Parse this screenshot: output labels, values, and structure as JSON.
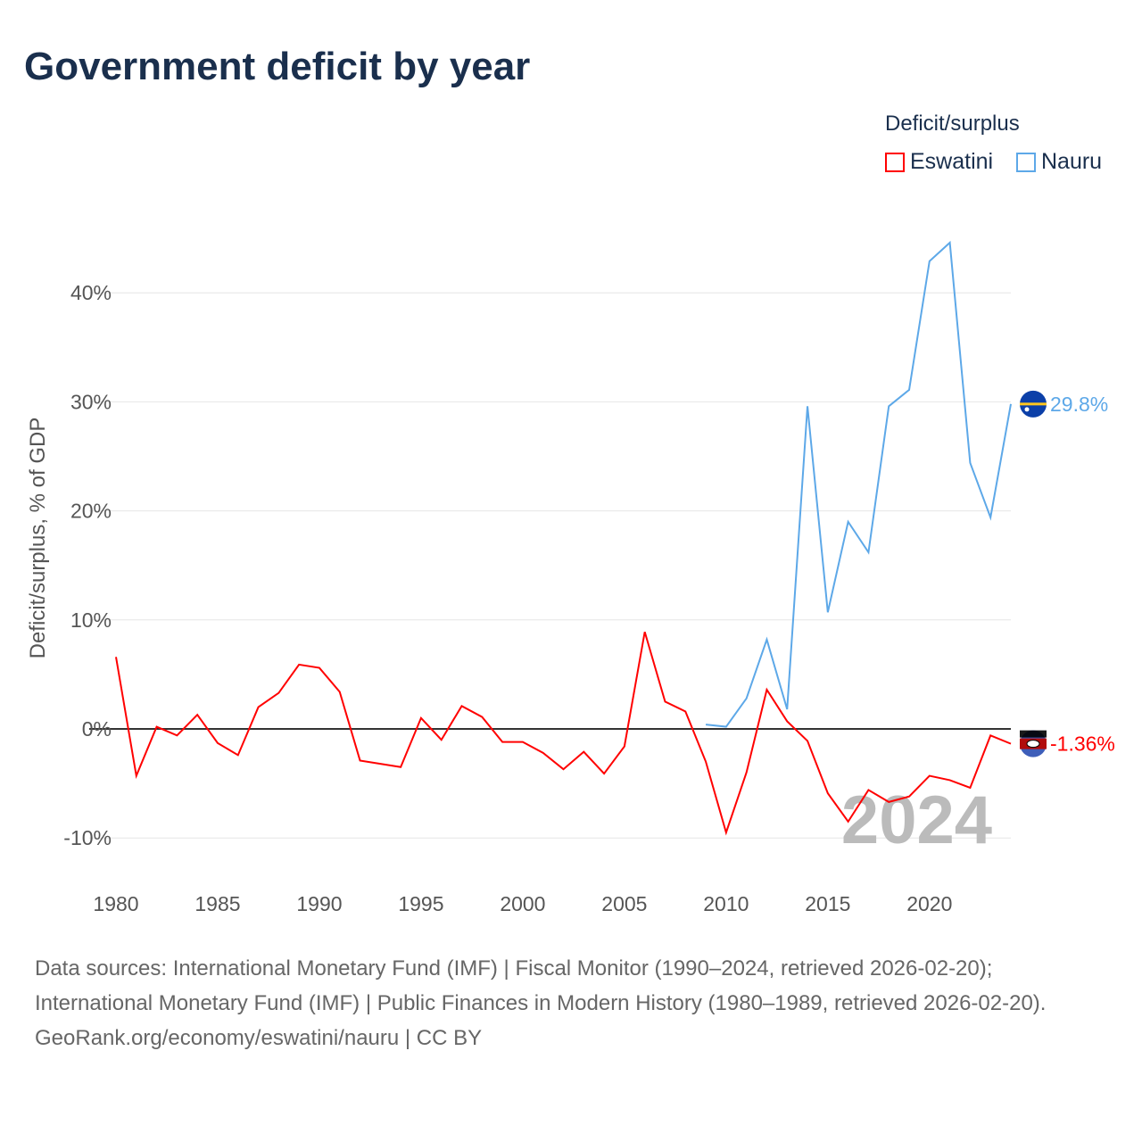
{
  "title": "Government deficit by year",
  "legend": {
    "title": "Deficit/surplus",
    "items": [
      "Eswatini",
      "Nauru"
    ]
  },
  "watermark_year": "2024",
  "end_labels": {
    "Eswatini": "-1.36%",
    "Nauru": "29.8%"
  },
  "source": {
    "line1": "Data sources: International Monetary Fund (IMF) | Fiscal Monitor (1990–2024, retrieved 2026-02-20); International Monetary Fund (IMF) | Public Finances in Modern History (1980–1989, retrieved 2026-02-20).",
    "line2": "GeoRank.org/economy/eswatini/nauru | CC BY"
  },
  "chart_data": {
    "type": "line",
    "title": "Government deficit by year",
    "xlabel": "",
    "ylabel": "Deficit/surplus, % of GDP",
    "xlim": [
      1980,
      2024
    ],
    "ylim": [
      -10,
      40
    ],
    "xticks": [
      1980,
      1985,
      1990,
      1995,
      2000,
      2005,
      2010,
      2015,
      2020
    ],
    "yticks": [
      -10,
      0,
      10,
      20,
      30,
      40
    ],
    "ytick_labels": [
      "-10%",
      "0%",
      "10%",
      "20%",
      "30%",
      "40%"
    ],
    "series": [
      {
        "name": "Eswatini",
        "color": "#ff0000",
        "x_start": 1980,
        "values": [
          6.6,
          -4.3,
          0.2,
          -0.6,
          1.3,
          -1.3,
          -2.4,
          2.0,
          3.3,
          5.9,
          5.6,
          3.4,
          -2.9,
          -3.2,
          -3.5,
          1.0,
          -1.0,
          2.1,
          1.1,
          -1.2,
          -1.2,
          -2.2,
          -3.7,
          -2.1,
          -4.1,
          -1.6,
          8.9,
          2.5,
          1.6,
          -3.0,
          -9.5,
          -4.0,
          3.6,
          0.7,
          -1.1,
          -5.9,
          -8.5,
          -5.6,
          -6.7,
          -6.2,
          -4.3,
          -4.7,
          -5.4,
          -0.6,
          -1.36
        ]
      },
      {
        "name": "Nauru",
        "color": "#5da8e8",
        "x_start": 2009,
        "values": [
          0.4,
          0.2,
          2.8,
          8.2,
          1.8,
          29.6,
          10.7,
          19.0,
          16.2,
          29.6,
          31.1,
          42.9,
          44.6,
          24.4,
          19.4,
          29.8
        ]
      }
    ]
  }
}
